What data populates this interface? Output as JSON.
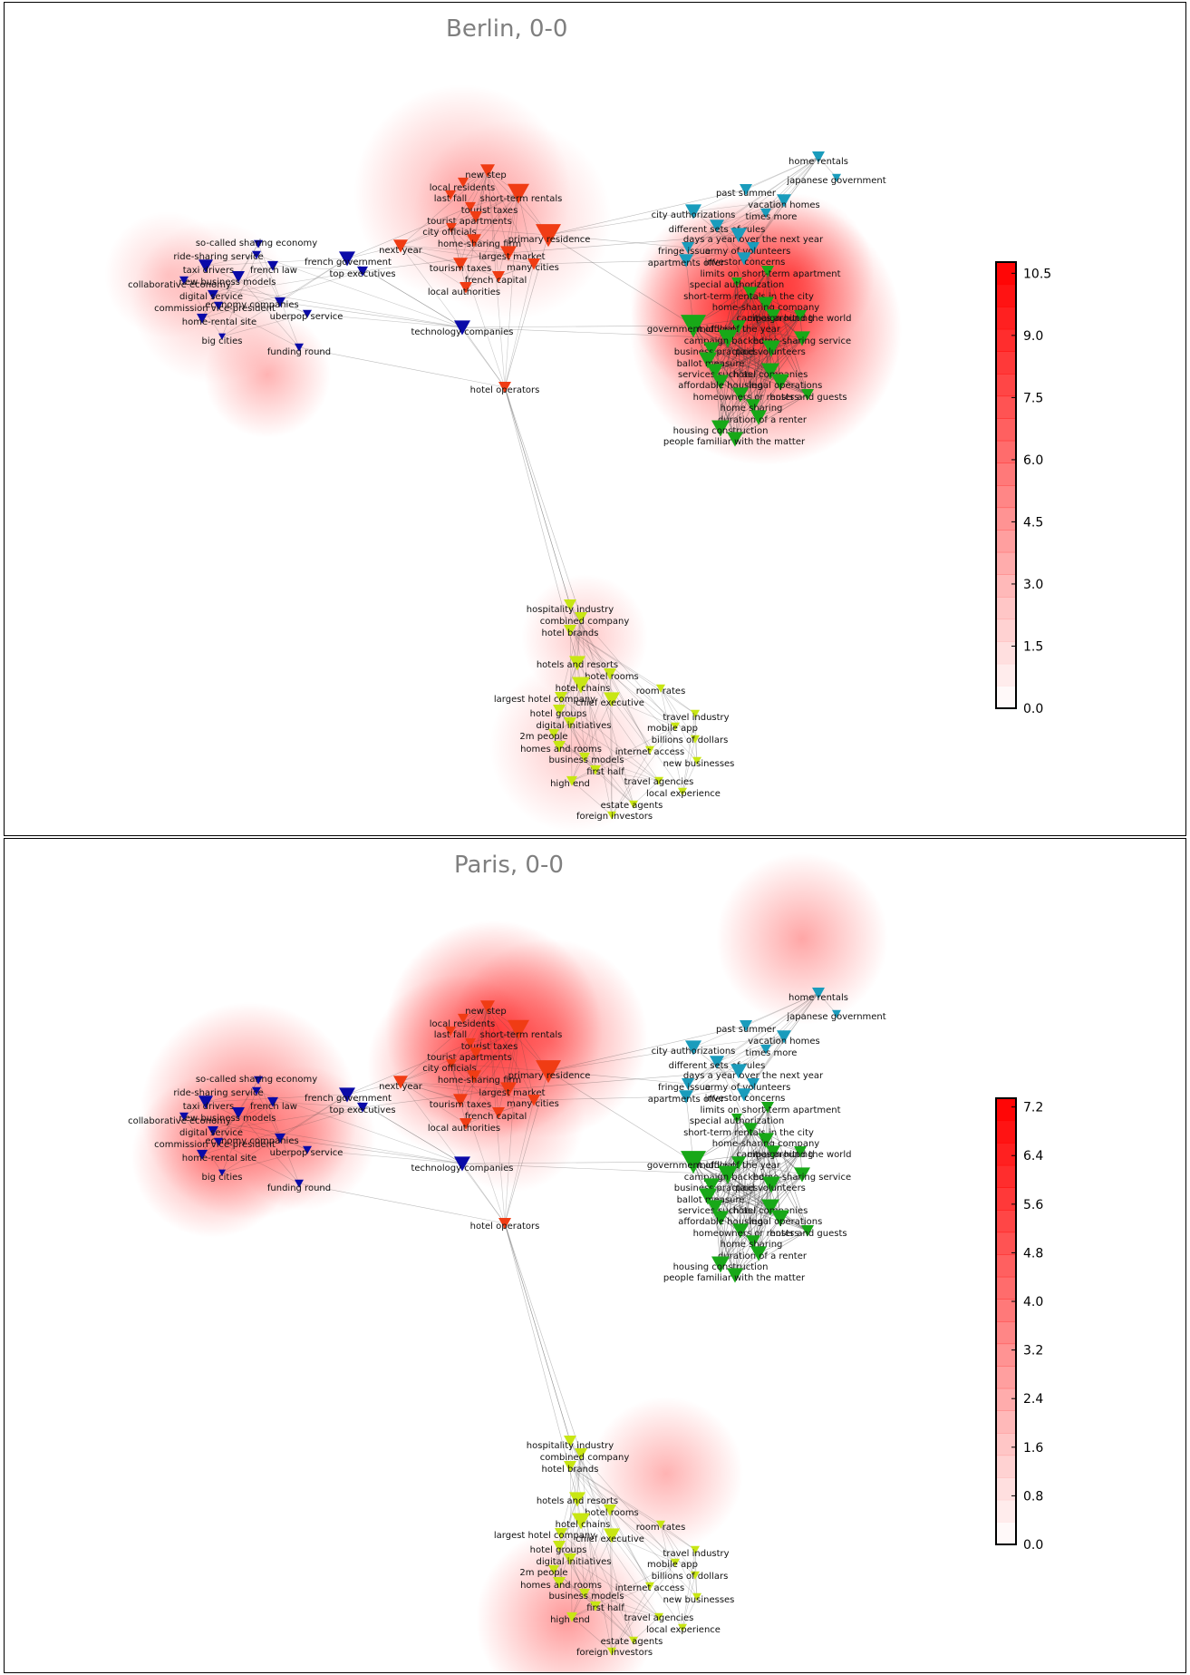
{
  "panels": [
    {
      "id": "berlin",
      "title": "Berlin, 0-0",
      "colorbar_ticks": [
        "0.0",
        "1.5",
        "3.0",
        "4.5",
        "6.0",
        "7.5",
        "9.0",
        "10.5"
      ]
    },
    {
      "id": "paris",
      "title": "Paris, 0-0",
      "colorbar_ticks": [
        "0.0",
        "0.8",
        "1.6",
        "2.4",
        "3.2",
        "4.0",
        "4.8",
        "5.6",
        "6.4",
        "7.2"
      ]
    }
  ],
  "colors": {
    "blue_cluster": "#0a0aa8",
    "cyan_cluster": "#1a9cbc",
    "red_cluster": "#f03c14",
    "green_cluster": "#18a818",
    "yellow_cluster": "#c8e614",
    "heat": "#ff0000",
    "edge": "#404040"
  },
  "labels": {
    "blue": [
      "so-called sharing economy",
      "ride-sharing service",
      "french law",
      "taxi drivers",
      "new business models",
      "collaborative economy",
      "digital service",
      "economy companies",
      "commission vice-president",
      "uberpop service",
      "home-rental site",
      "big cities",
      "funding round",
      "french government",
      "top executives",
      "technology companies"
    ],
    "red": [
      "new step",
      "local residents",
      "last fall",
      "short-term rentals",
      "tourist taxes",
      "tourist apartments",
      "city officials",
      "home-sharing firm",
      "primary residence",
      "next year",
      "largest market",
      "tourism taxes",
      "many cities",
      "french capital",
      "local authorities",
      "hotel operators"
    ],
    "cyan": [
      "home rentals",
      "japanese government",
      "past summer",
      "vacation homes",
      "city authorizations",
      "times more",
      "different sets of rules",
      "days a year over the next year",
      "fringe issue",
      "army of volunteers",
      "apartments offer",
      "investor concerns"
    ],
    "green": [
      "limits on short-term apartment",
      "special authorization",
      "short-term rentals in the city",
      "home-sharing company",
      "campaign hitting",
      "cities around the world",
      "government officials",
      "middle of the year",
      "campaign backed",
      "home-sharing service",
      "business practices",
      "paid volunteers",
      "ballot measure",
      "services such as",
      "hotel companies",
      "affordable housing",
      "legal operations",
      "homeowners or renters",
      "hosts and guests",
      "home sharing",
      "duration of a renter",
      "housing construction",
      "people familiar with the matter"
    ],
    "yellow": [
      "hospitality industry",
      "combined company",
      "hotel brands",
      "hotels and resorts",
      "hotel rooms",
      "hotel chains",
      "room rates",
      "largest hotel company",
      "chief executive",
      "hotel groups",
      "travel industry",
      "digital initiatives",
      "mobile app",
      "2m people",
      "billions of dollars",
      "homes and rooms",
      "internet access",
      "business models",
      "new businesses",
      "first half",
      "high end",
      "travel agencies",
      "local experience",
      "estate agents",
      "foreign investors"
    ]
  }
}
